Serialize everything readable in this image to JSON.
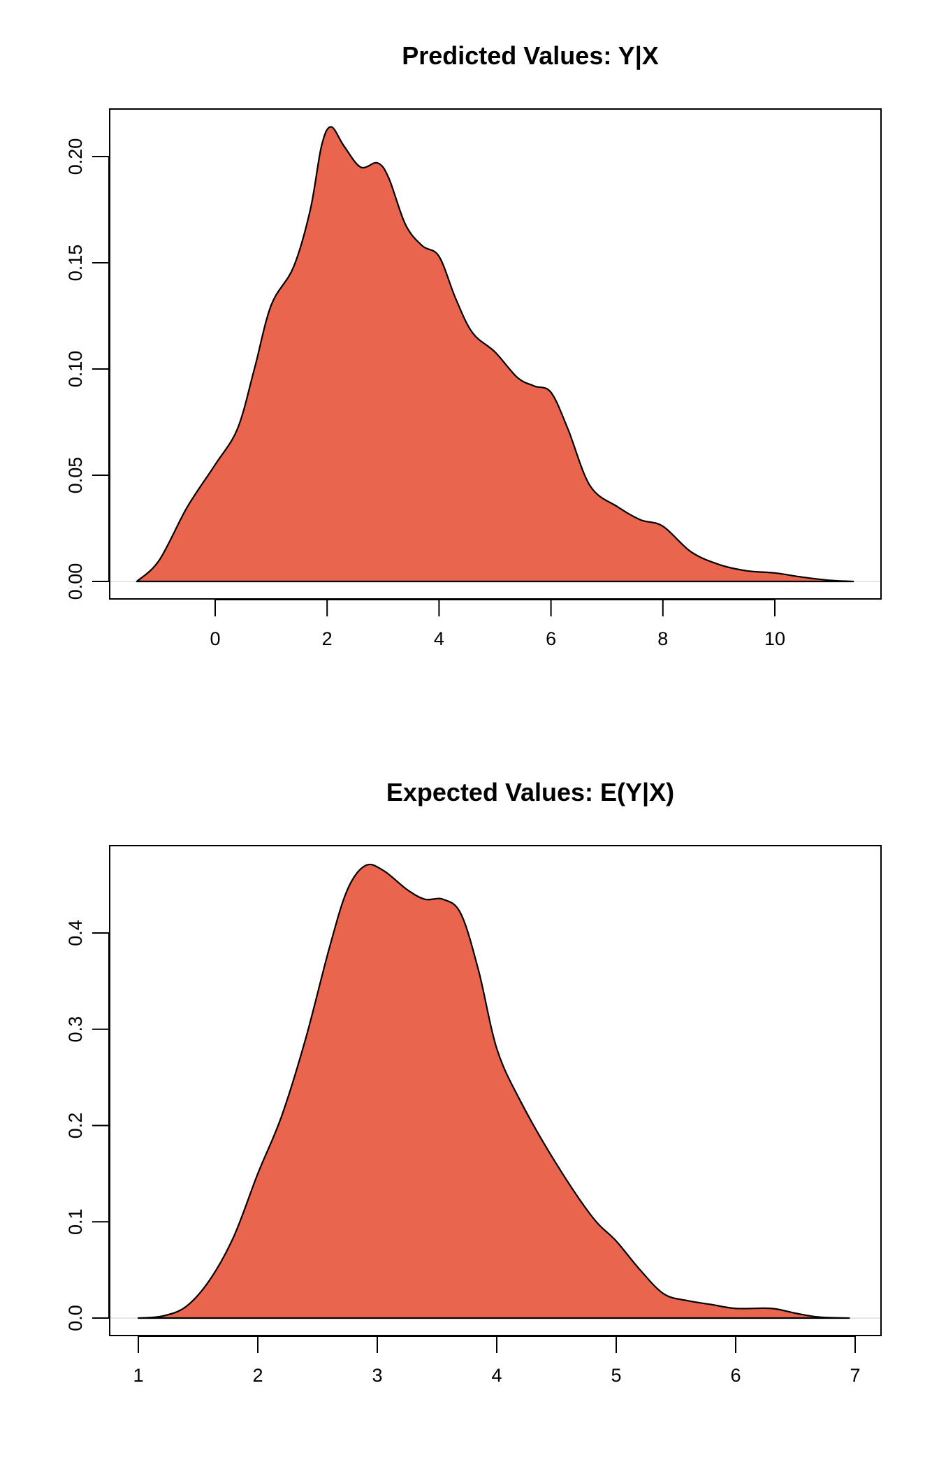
{
  "chart_data": [
    {
      "type": "area",
      "title": "Predicted Values: Y|X",
      "xlabel": "",
      "ylabel": "",
      "xlim": [
        -1.9,
        11.9
      ],
      "ylim": [
        -0.008,
        0.222
      ],
      "xticks": [
        "0",
        "2",
        "4",
        "6",
        "8",
        "10"
      ],
      "yticks": [
        "0.00",
        "0.05",
        "0.10",
        "0.15",
        "0.20"
      ],
      "grid": false,
      "fill_color": "#EA654E",
      "line_color": "#000000",
      "x": [
        -1.4,
        -1.0,
        -0.5,
        0.0,
        0.4,
        0.7,
        1.0,
        1.4,
        1.7,
        1.9,
        2.07,
        2.3,
        2.6,
        2.9,
        3.1,
        3.4,
        3.7,
        4.0,
        4.3,
        4.6,
        5.0,
        5.4,
        5.7,
        6.0,
        6.3,
        6.7,
        7.2,
        7.6,
        8.0,
        8.5,
        9.0,
        9.5,
        10.0,
        10.5,
        11.0,
        11.4
      ],
      "y": [
        0,
        0.01,
        0.035,
        0.055,
        0.072,
        0.1,
        0.13,
        0.148,
        0.175,
        0.205,
        0.214,
        0.205,
        0.195,
        0.197,
        0.19,
        0.168,
        0.158,
        0.153,
        0.133,
        0.117,
        0.108,
        0.096,
        0.092,
        0.089,
        0.072,
        0.045,
        0.035,
        0.029,
        0.026,
        0.014,
        0.008,
        0.005,
        0.004,
        0.002,
        0.0005,
        0
      ]
    },
    {
      "type": "area",
      "title": "Expected Values: E(Y|X)",
      "xlabel": "",
      "ylabel": "",
      "xlim": [
        0.77,
        7.2
      ],
      "ylim": [
        -0.018,
        0.49
      ],
      "xticks": [
        "1",
        "2",
        "3",
        "4",
        "5",
        "6",
        "7"
      ],
      "yticks": [
        "0.0",
        "0.1",
        "0.2",
        "0.3",
        "0.4"
      ],
      "grid": false,
      "fill_color": "#EA654E",
      "line_color": "#000000",
      "x": [
        1.0,
        1.2,
        1.4,
        1.6,
        1.8,
        2.0,
        2.2,
        2.4,
        2.6,
        2.75,
        2.9,
        3.05,
        3.25,
        3.4,
        3.55,
        3.7,
        3.85,
        4.0,
        4.2,
        4.5,
        4.8,
        5.0,
        5.2,
        5.4,
        5.6,
        5.8,
        6.0,
        6.3,
        6.5,
        6.7,
        6.95
      ],
      "y": [
        0,
        0.002,
        0.012,
        0.04,
        0.085,
        0.15,
        0.21,
        0.29,
        0.385,
        0.445,
        0.47,
        0.465,
        0.445,
        0.435,
        0.435,
        0.42,
        0.36,
        0.28,
        0.225,
        0.16,
        0.105,
        0.08,
        0.05,
        0.025,
        0.018,
        0.014,
        0.01,
        0.01,
        0.005,
        0.001,
        0
      ]
    }
  ]
}
